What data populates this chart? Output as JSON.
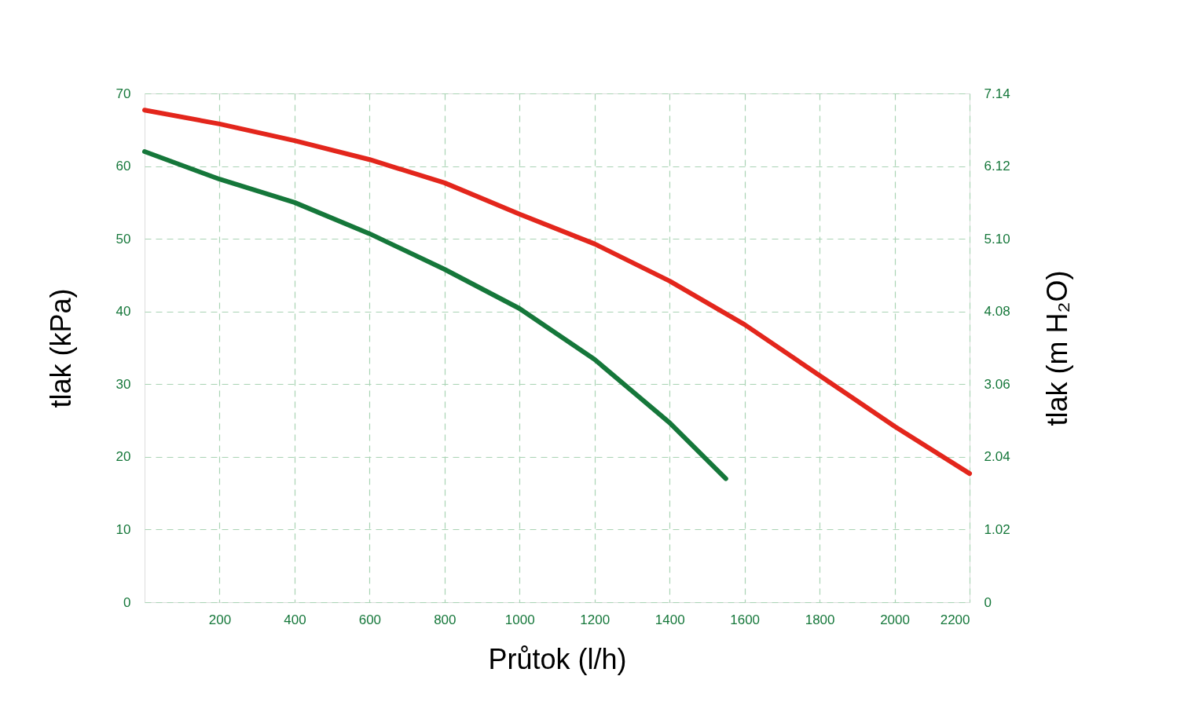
{
  "chart_data": {
    "type": "line",
    "xlabel": "Průtok (l/h)",
    "ylabel": "tlak (kPa)",
    "y2label": "tlak (m H₂O)",
    "x": [
      0,
      200,
      400,
      600,
      800,
      1000,
      1200,
      1400,
      1600,
      1800,
      2000,
      2200
    ],
    "series": [
      {
        "color": "#e3261c",
        "values": [
          67.7,
          65.8,
          63.5,
          60.9,
          57.7,
          53.4,
          49.3,
          44.2,
          38.2,
          31.2,
          24.2,
          17.7
        ]
      },
      {
        "color": "#15773a",
        "x": [
          0,
          200,
          400,
          600,
          800,
          1000,
          1200,
          1400,
          1550
        ],
        "values": [
          62.0,
          58.2,
          55.0,
          50.7,
          45.8,
          40.4,
          33.4,
          24.7,
          17.0
        ]
      }
    ],
    "xlim": [
      0,
      2200
    ],
    "xticks": [
      200,
      400,
      600,
      800,
      1000,
      1200,
      1400,
      1600,
      1800,
      2000,
      2200
    ],
    "ylim": [
      0,
      70
    ],
    "yticks": [
      0,
      10,
      20,
      30,
      40,
      50,
      60,
      70
    ],
    "y2lim": [
      0,
      7.14
    ],
    "y2ticks": [
      0,
      1.02,
      2.04,
      3.06,
      4.08,
      {
        "value": 5.1,
        "label": "5.10"
      },
      6.12,
      7.14
    ],
    "grid": true,
    "line_style": "solid",
    "marker": "none",
    "legend": false
  }
}
